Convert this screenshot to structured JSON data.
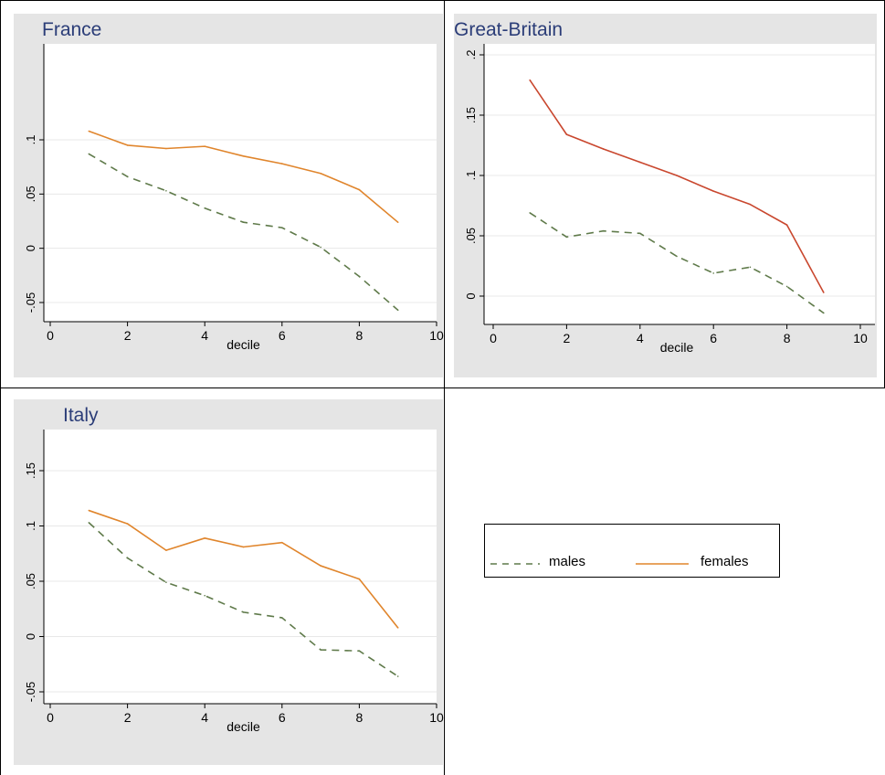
{
  "legend": {
    "males_label": "males",
    "females_label": "females"
  },
  "colors": {
    "males": "#5f7a4a",
    "females": "#e0852c",
    "females_gb": "#c9472e",
    "title": "#2b3d78",
    "panel_bg": "#e5e5e5",
    "plot_bg": "#ffffff",
    "grid": "#e8e8e8"
  },
  "chart_data": [
    {
      "type": "line",
      "title": "France",
      "xlabel": "decile",
      "ylabel": "",
      "xlim": [
        0,
        10
      ],
      "ylim": [
        -0.065,
        0.185
      ],
      "xticks": [
        0,
        2,
        4,
        6,
        8,
        10
      ],
      "yticks": [
        -0.05,
        0,
        0.05,
        0.1
      ],
      "ytick_labels": [
        "-.05",
        "0",
        ".05",
        ".1"
      ],
      "grid": true,
      "series": [
        {
          "name": "males",
          "style": "dashed",
          "x": [
            1,
            2,
            3,
            4,
            5,
            6,
            7,
            8,
            9
          ],
          "y": [
            0.087,
            0.066,
            0.053,
            0.037,
            0.024,
            0.019,
            0.001,
            -0.026,
            -0.057
          ]
        },
        {
          "name": "females",
          "style": "solid",
          "x": [
            1,
            2,
            3,
            4,
            5,
            6,
            7,
            8,
            9
          ],
          "y": [
            0.108,
            0.095,
            0.092,
            0.094,
            0.085,
            0.078,
            0.069,
            0.054,
            0.024
          ]
        }
      ]
    },
    {
      "type": "line",
      "title": "Great-Britain",
      "xlabel": "decile",
      "ylabel": "",
      "xlim": [
        0,
        10
      ],
      "ylim": [
        -0.022,
        0.21
      ],
      "xticks": [
        0,
        2,
        4,
        6,
        8,
        10
      ],
      "yticks": [
        0,
        0.05,
        0.1,
        0.15,
        0.2
      ],
      "ytick_labels": [
        "0",
        ".05",
        ".1",
        ".15",
        ".2"
      ],
      "grid": true,
      "series": [
        {
          "name": "males",
          "style": "dashed",
          "x": [
            1,
            2,
            3,
            4,
            5,
            6,
            7,
            8,
            9
          ],
          "y": [
            0.069,
            0.049,
            0.054,
            0.052,
            0.033,
            0.019,
            0.024,
            0.008,
            -0.014
          ]
        },
        {
          "name": "females",
          "style": "solid",
          "x": [
            1,
            2,
            3,
            4,
            5,
            6,
            7,
            8,
            9
          ],
          "y": [
            0.179,
            0.134,
            0.122,
            0.111,
            0.1,
            0.087,
            0.076,
            0.059,
            0.003
          ]
        }
      ]
    },
    {
      "type": "line",
      "title": "Italy",
      "xlabel": "decile",
      "ylabel": "",
      "xlim": [
        0,
        10
      ],
      "ylim": [
        -0.06,
        0.185
      ],
      "xticks": [
        0,
        2,
        4,
        6,
        8,
        10
      ],
      "yticks": [
        -0.05,
        0,
        0.05,
        0.1,
        0.15
      ],
      "ytick_labels": [
        "-.05",
        "0",
        ".05",
        ".1",
        ".15"
      ],
      "grid": true,
      "series": [
        {
          "name": "males",
          "style": "dashed",
          "x": [
            1,
            2,
            3,
            4,
            5,
            6,
            7,
            8,
            9
          ],
          "y": [
            0.103,
            0.071,
            0.049,
            0.037,
            0.022,
            0.017,
            -0.012,
            -0.013,
            -0.036
          ]
        },
        {
          "name": "females",
          "style": "solid",
          "x": [
            1,
            2,
            3,
            4,
            5,
            6,
            7,
            8,
            9
          ],
          "y": [
            0.114,
            0.102,
            0.078,
            0.089,
            0.081,
            0.085,
            0.064,
            0.052,
            0.008
          ]
        }
      ]
    }
  ]
}
